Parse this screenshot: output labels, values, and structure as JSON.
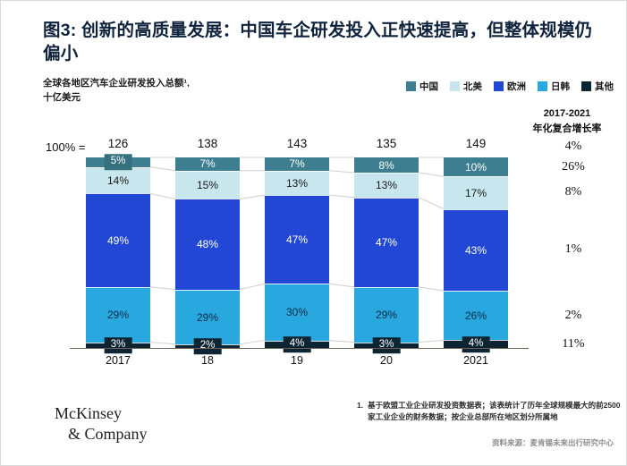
{
  "header": {
    "title": "图3: 创新的高质量发展：中国车企研发投入正快速提高，但整体规模仍偏小",
    "subtitle_line1": "全球各地区汽车企业研发投入总额¹,",
    "subtitle_line2": "十亿美元"
  },
  "legend": [
    {
      "label": "中国",
      "color": "#3d7f90"
    },
    {
      "label": "北美",
      "color": "#c7e6ee"
    },
    {
      "label": "欧洲",
      "color": "#2347d5"
    },
    {
      "label": "日韩",
      "color": "#29a8e0"
    },
    {
      "label": "其他",
      "color": "#0d2533"
    }
  ],
  "chart_data": {
    "type": "bar",
    "stacked": true,
    "unit": "percent of total",
    "hundred_label": "100% =",
    "categories": [
      "2017",
      "18",
      "19",
      "20",
      "2021"
    ],
    "totals": [
      126,
      138,
      143,
      135,
      149
    ],
    "series": [
      {
        "name": "中国",
        "color": "#3d7f90",
        "text_color": "#ffffff",
        "chip_color": "#35707e",
        "values": [
          5,
          7,
          7,
          8,
          10
        ]
      },
      {
        "name": "北美",
        "color": "#c7e6ee",
        "text_color": "#1a1a1a",
        "values": [
          14,
          15,
          13,
          13,
          17
        ]
      },
      {
        "name": "欧洲",
        "color": "#2347d5",
        "text_color": "#ffffff",
        "values": [
          49,
          48,
          47,
          47,
          43
        ]
      },
      {
        "name": "日韩",
        "color": "#29a8e0",
        "text_color": "#0d2b45",
        "values": [
          29,
          29,
          30,
          29,
          26
        ]
      },
      {
        "name": "其他",
        "color": "#0d2533",
        "text_color": "#ffffff",
        "values": [
          3,
          2,
          4,
          3,
          4
        ]
      }
    ],
    "cagr": {
      "header_line1": "2017-2021",
      "header_line2": "年化复合增长率",
      "total": "4%",
      "values": [
        "26%",
        "8%",
        "1%",
        "2%",
        "11%"
      ]
    },
    "connector_line_color": "#cfcfcf",
    "legend_position": "top-right",
    "grid": false
  },
  "footer": {
    "logo_line1": "McKinsey",
    "logo_line2": "& Company",
    "footnote_index": "1.",
    "footnote": "基于欧盟工业企业研发投资数据表；该表统计了历年全球规模最大的前2500家工业企业的财务数据；按企业总部所在地区划分所属地",
    "source": "资料来源：麦肯锡未来出行研究中心"
  }
}
